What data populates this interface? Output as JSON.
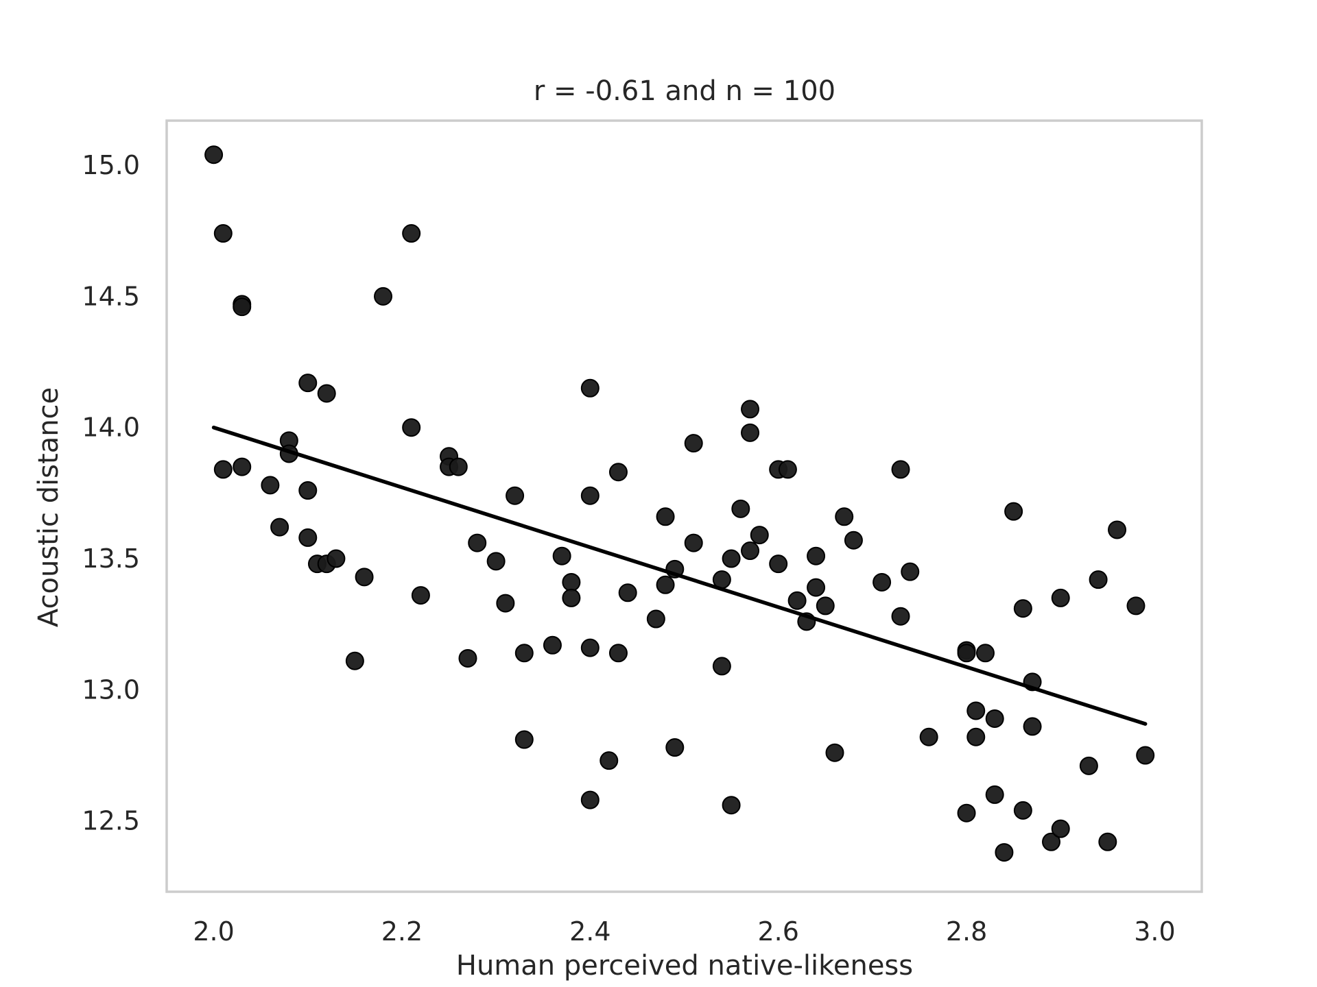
{
  "chart_data": {
    "type": "scatter",
    "title": "r = -0.61 and n = 100",
    "xlabel": "Human perceived native-likeness",
    "ylabel": "Acoustic distance",
    "xlim": [
      1.95,
      3.05
    ],
    "ylim": [
      12.23,
      15.17
    ],
    "xticks": [
      2.0,
      2.2,
      2.4,
      2.6,
      2.8,
      3.0
    ],
    "xtick_labels": [
      "2.0",
      "2.2",
      "2.4",
      "2.6",
      "2.8",
      "3.0"
    ],
    "yticks": [
      12.5,
      13.0,
      13.5,
      14.0,
      14.5,
      15.0
    ],
    "ytick_labels": [
      "12.5",
      "13.0",
      "13.5",
      "14.0",
      "14.5",
      "15.0"
    ],
    "grid": false,
    "legend": "none",
    "colors": {
      "points": "#1a1a1a",
      "regression_line": "#000000",
      "frame": "#cccccc"
    },
    "points": [
      [
        2.0,
        15.04
      ],
      [
        2.01,
        14.74
      ],
      [
        2.03,
        14.47
      ],
      [
        2.03,
        14.46
      ],
      [
        2.01,
        13.84
      ],
      [
        2.03,
        13.85
      ],
      [
        2.06,
        13.78
      ],
      [
        2.08,
        13.95
      ],
      [
        2.08,
        13.9
      ],
      [
        2.1,
        14.17
      ],
      [
        2.12,
        14.13
      ],
      [
        2.1,
        13.76
      ],
      [
        2.07,
        13.62
      ],
      [
        2.1,
        13.58
      ],
      [
        2.11,
        13.48
      ],
      [
        2.12,
        13.48
      ],
      [
        2.13,
        13.5
      ],
      [
        2.16,
        13.43
      ],
      [
        2.15,
        13.11
      ],
      [
        2.18,
        14.5
      ],
      [
        2.21,
        14.74
      ],
      [
        2.21,
        14.0
      ],
      [
        2.22,
        13.36
      ],
      [
        2.25,
        13.89
      ],
      [
        2.25,
        13.85
      ],
      [
        2.26,
        13.85
      ],
      [
        2.28,
        13.56
      ],
      [
        2.27,
        13.12
      ],
      [
        2.3,
        13.49
      ],
      [
        2.31,
        13.33
      ],
      [
        2.32,
        13.74
      ],
      [
        2.33,
        13.14
      ],
      [
        2.33,
        12.81
      ],
      [
        2.36,
        13.17
      ],
      [
        2.37,
        13.51
      ],
      [
        2.38,
        13.41
      ],
      [
        2.38,
        13.35
      ],
      [
        2.4,
        14.15
      ],
      [
        2.4,
        13.74
      ],
      [
        2.4,
        13.16
      ],
      [
        2.4,
        12.58
      ],
      [
        2.42,
        12.73
      ],
      [
        2.43,
        13.14
      ],
      [
        2.43,
        13.83
      ],
      [
        2.44,
        13.37
      ],
      [
        2.47,
        13.27
      ],
      [
        2.48,
        13.66
      ],
      [
        2.48,
        13.4
      ],
      [
        2.49,
        13.46
      ],
      [
        2.49,
        12.78
      ],
      [
        2.51,
        13.94
      ],
      [
        2.51,
        13.56
      ],
      [
        2.54,
        13.42
      ],
      [
        2.54,
        13.09
      ],
      [
        2.55,
        13.5
      ],
      [
        2.55,
        12.56
      ],
      [
        2.56,
        13.69
      ],
      [
        2.57,
        13.53
      ],
      [
        2.57,
        14.07
      ],
      [
        2.57,
        13.98
      ],
      [
        2.58,
        13.59
      ],
      [
        2.6,
        13.84
      ],
      [
        2.6,
        13.48
      ],
      [
        2.61,
        13.84
      ],
      [
        2.62,
        13.34
      ],
      [
        2.63,
        13.26
      ],
      [
        2.64,
        13.51
      ],
      [
        2.64,
        13.39
      ],
      [
        2.65,
        13.32
      ],
      [
        2.66,
        12.76
      ],
      [
        2.67,
        13.66
      ],
      [
        2.68,
        13.57
      ],
      [
        2.71,
        13.41
      ],
      [
        2.73,
        13.84
      ],
      [
        2.73,
        13.28
      ],
      [
        2.74,
        13.45
      ],
      [
        2.76,
        12.82
      ],
      [
        2.8,
        13.15
      ],
      [
        2.8,
        13.14
      ],
      [
        2.8,
        12.53
      ],
      [
        2.81,
        12.92
      ],
      [
        2.81,
        12.82
      ],
      [
        2.82,
        13.14
      ],
      [
        2.83,
        12.89
      ],
      [
        2.83,
        12.6
      ],
      [
        2.84,
        12.38
      ],
      [
        2.85,
        13.68
      ],
      [
        2.86,
        13.31
      ],
      [
        2.86,
        12.54
      ],
      [
        2.87,
        13.03
      ],
      [
        2.87,
        12.86
      ],
      [
        2.89,
        12.42
      ],
      [
        2.9,
        12.47
      ],
      [
        2.9,
        13.35
      ],
      [
        2.93,
        12.71
      ],
      [
        2.94,
        13.42
      ],
      [
        2.95,
        12.42
      ],
      [
        2.96,
        13.61
      ],
      [
        2.98,
        13.32
      ],
      [
        2.99,
        12.75
      ]
    ],
    "regression_line": {
      "x": [
        2.0,
        2.99
      ],
      "y": [
        14.0,
        12.87
      ]
    }
  }
}
